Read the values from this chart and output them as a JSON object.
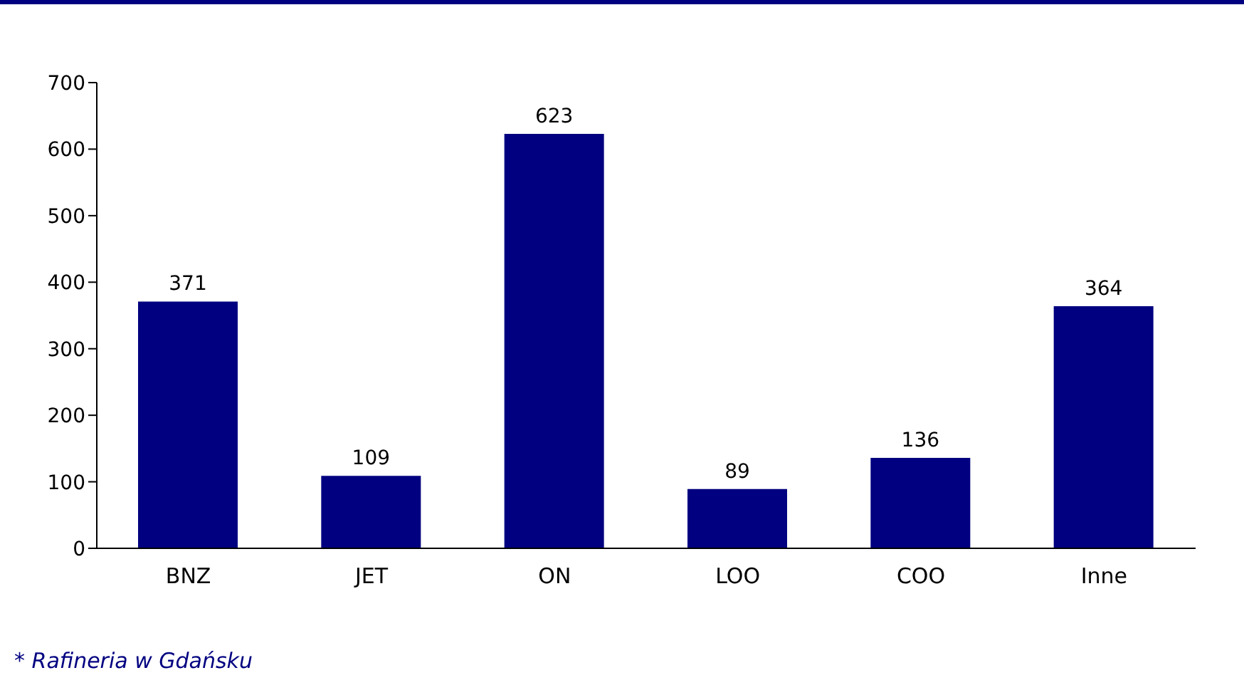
{
  "chart_data": {
    "type": "bar",
    "categories": [
      "BNZ",
      "JET",
      "ON",
      "LOO",
      "COO",
      "Inne"
    ],
    "values": [
      371,
      109,
      623,
      89,
      136,
      364
    ],
    "color": "#000080",
    "ylim": [
      0,
      700
    ],
    "yticks": [
      0,
      100,
      200,
      300,
      400,
      500,
      600,
      700
    ],
    "data_labels": true,
    "grid": false,
    "legend": false,
    "annotations": [
      "* Rafineria w Gdańsku"
    ]
  }
}
